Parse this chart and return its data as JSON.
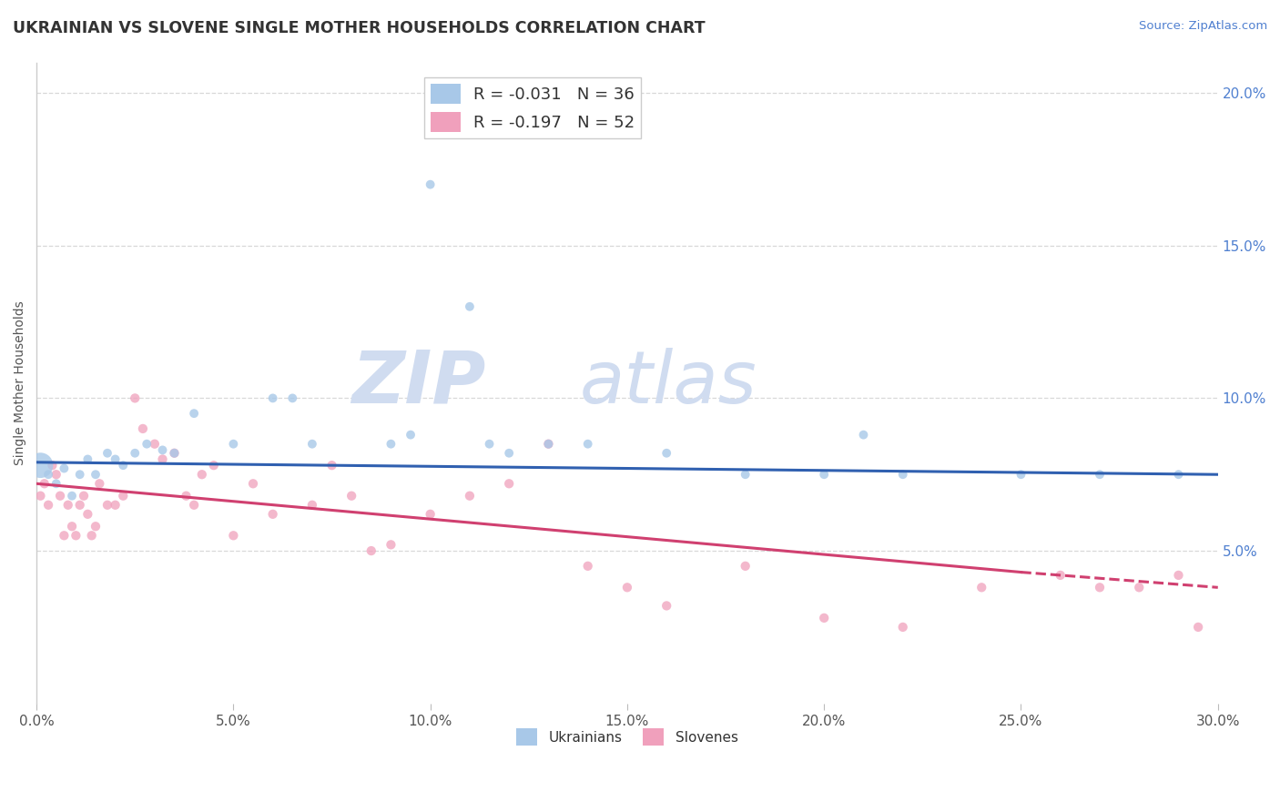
{
  "title": "UKRAINIAN VS SLOVENE SINGLE MOTHER HOUSEHOLDS CORRELATION CHART",
  "source_text": "Source: ZipAtlas.com",
  "ylabel": "Single Mother Households",
  "xlim": [
    0.0,
    0.3
  ],
  "ylim": [
    0.0,
    0.21
  ],
  "xticks": [
    0.0,
    0.05,
    0.1,
    0.15,
    0.2,
    0.25,
    0.3
  ],
  "xtick_labels": [
    "0.0%",
    "5.0%",
    "10.0%",
    "15.0%",
    "20.0%",
    "25.0%",
    "30.0%"
  ],
  "yticks_right": [
    0.05,
    0.1,
    0.15,
    0.2
  ],
  "ytick_labels_right": [
    "5.0%",
    "10.0%",
    "15.0%",
    "20.0%"
  ],
  "grid_yticks": [
    0.05,
    0.1,
    0.15,
    0.2
  ],
  "legend_label1": "R = -0.031   N = 36",
  "legend_label2": "R = -0.197   N = 52",
  "legend_label_ukrainians": "Ukrainians",
  "legend_label_slovenes": "Slovenes",
  "color_blue": "#A8C8E8",
  "color_pink": "#F0A0BC",
  "color_blue_line": "#3060B0",
  "color_pink_line": "#D04070",
  "title_fontsize": 13,
  "axis_label_fontsize": 10,
  "tick_fontsize": 11,
  "watermark_zip": "ZIP",
  "watermark_atlas": "atlas",
  "watermark_color": "#D0DCF0",
  "background_color": "#FFFFFF",
  "grid_color": "#D8D8D8",
  "ukr_x": [
    0.001,
    0.003,
    0.005,
    0.007,
    0.009,
    0.011,
    0.013,
    0.015,
    0.018,
    0.02,
    0.022,
    0.025,
    0.028,
    0.032,
    0.035,
    0.04,
    0.05,
    0.06,
    0.065,
    0.07,
    0.09,
    0.095,
    0.1,
    0.11,
    0.115,
    0.12,
    0.13,
    0.14,
    0.16,
    0.18,
    0.2,
    0.21,
    0.22,
    0.25,
    0.27,
    0.29
  ],
  "ukr_y": [
    0.078,
    0.075,
    0.072,
    0.077,
    0.068,
    0.075,
    0.08,
    0.075,
    0.082,
    0.08,
    0.078,
    0.082,
    0.085,
    0.083,
    0.082,
    0.095,
    0.085,
    0.1,
    0.1,
    0.085,
    0.085,
    0.088,
    0.17,
    0.13,
    0.085,
    0.082,
    0.085,
    0.085,
    0.082,
    0.075,
    0.075,
    0.088,
    0.075,
    0.075,
    0.075,
    0.075
  ],
  "ukr_sizes": [
    400,
    50,
    50,
    50,
    50,
    50,
    50,
    50,
    50,
    50,
    50,
    50,
    50,
    50,
    50,
    50,
    50,
    50,
    50,
    50,
    50,
    50,
    50,
    50,
    50,
    50,
    50,
    50,
    50,
    50,
    50,
    50,
    50,
    50,
    50,
    50
  ],
  "slo_x": [
    0.001,
    0.002,
    0.003,
    0.004,
    0.005,
    0.006,
    0.007,
    0.008,
    0.009,
    0.01,
    0.011,
    0.012,
    0.013,
    0.014,
    0.015,
    0.016,
    0.018,
    0.02,
    0.022,
    0.025,
    0.027,
    0.03,
    0.032,
    0.035,
    0.038,
    0.04,
    0.042,
    0.045,
    0.05,
    0.055,
    0.06,
    0.07,
    0.075,
    0.08,
    0.085,
    0.09,
    0.1,
    0.11,
    0.12,
    0.13,
    0.14,
    0.15,
    0.16,
    0.18,
    0.2,
    0.22,
    0.24,
    0.26,
    0.27,
    0.28,
    0.29,
    0.295
  ],
  "slo_y": [
    0.068,
    0.072,
    0.065,
    0.078,
    0.075,
    0.068,
    0.055,
    0.065,
    0.058,
    0.055,
    0.065,
    0.068,
    0.062,
    0.055,
    0.058,
    0.072,
    0.065,
    0.065,
    0.068,
    0.1,
    0.09,
    0.085,
    0.08,
    0.082,
    0.068,
    0.065,
    0.075,
    0.078,
    0.055,
    0.072,
    0.062,
    0.065,
    0.078,
    0.068,
    0.05,
    0.052,
    0.062,
    0.068,
    0.072,
    0.085,
    0.045,
    0.038,
    0.032,
    0.045,
    0.028,
    0.025,
    0.038,
    0.042,
    0.038,
    0.038,
    0.042,
    0.025
  ]
}
